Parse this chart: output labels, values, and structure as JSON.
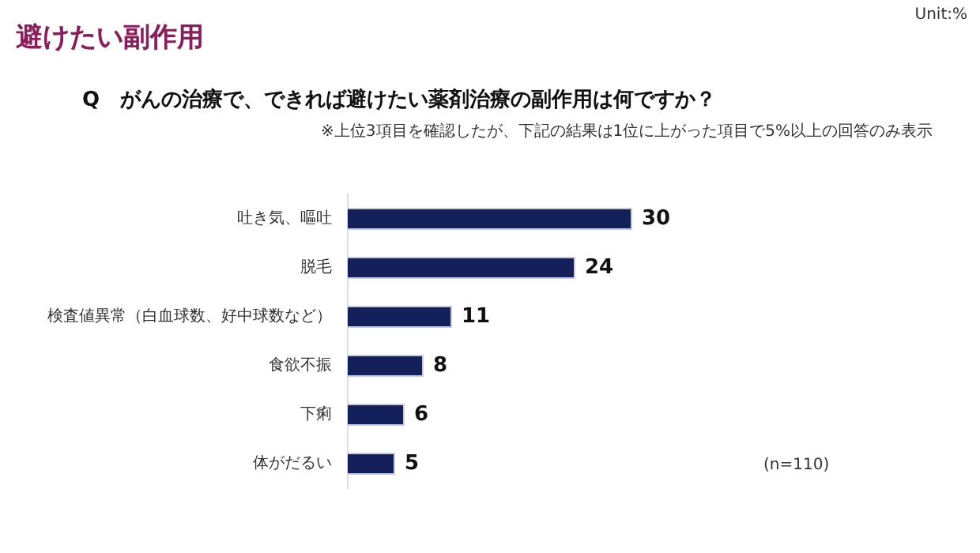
{
  "chart_data": {
    "type": "bar",
    "orientation": "horizontal",
    "title": "避けたい副作用",
    "subtitle": "Q　がんの治療で、できれば避けたい薬剤治療の副作用は何ですか？",
    "categories": [
      "吐き気、嘔吐",
      "脱毛",
      "検査値異常（白血球数、好中球数など）",
      "食欲不振",
      "下痢",
      "体がだるい"
    ],
    "values": [
      30,
      24,
      11,
      8,
      6,
      5
    ],
    "color": "#14205a",
    "data_labels": true,
    "tick_labels": "y",
    "grid": false,
    "legend": false,
    "annotations": [
      "Unit:%",
      "※上位3項目を確認したが、下記の結果は1位に上がった項目で5%以上の回答のみ表示",
      "(n=110)"
    ]
  }
}
